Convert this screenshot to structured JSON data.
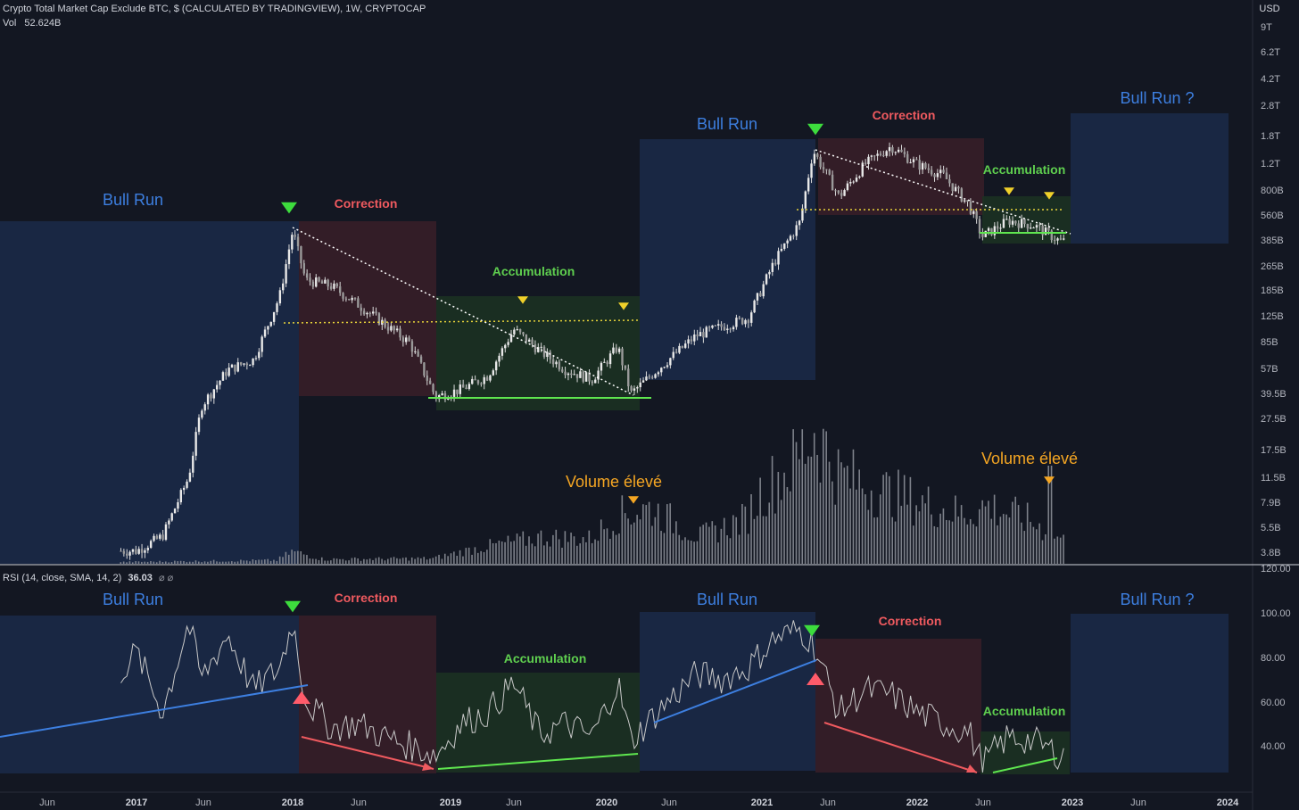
{
  "header": {
    "title": "Crypto Total Market Cap Exclude BTC, $ (CALCULATED BY TRADINGVIEW), 1W, CRYPTOCAP",
    "vol_label": "Vol",
    "vol_value": "52.624B",
    "rsi_label": "RSI (14, close, SMA, 14, 2)",
    "rsi_value": "36.03",
    "rsi_icons": "⌀  ⌀"
  },
  "price_axis": {
    "currency": "USD",
    "ticks": [
      "9T",
      "6.2T",
      "4.2T",
      "2.8T",
      "1.8T",
      "1.2T",
      "800B",
      "560B",
      "385B",
      "265B",
      "185B",
      "125B",
      "85B",
      "57B",
      "39.5B",
      "27.5B",
      "17.5B",
      "11.5B",
      "7.9B",
      "5.5B",
      "3.8B"
    ]
  },
  "rsi_axis": {
    "ticks": [
      "120.00",
      "100.00",
      "80.00",
      "60.00",
      "40.00"
    ]
  },
  "time_axis": {
    "ticks": [
      {
        "label": "Jun",
        "bold": false
      },
      {
        "label": "2017",
        "bold": true
      },
      {
        "label": "Jun",
        "bold": false
      },
      {
        "label": "2018",
        "bold": true
      },
      {
        "label": "Jun",
        "bold": false
      },
      {
        "label": "2019",
        "bold": true
      },
      {
        "label": "Jun",
        "bold": false
      },
      {
        "label": "2020",
        "bold": true
      },
      {
        "label": "Jun",
        "bold": false
      },
      {
        "label": "2021",
        "bold": true
      },
      {
        "label": "Jun",
        "bold": false
      },
      {
        "label": "2022",
        "bold": true
      },
      {
        "label": "Jun",
        "bold": false
      },
      {
        "label": "2023",
        "bold": true
      },
      {
        "label": "Jun",
        "bold": false
      },
      {
        "label": "2024",
        "bold": true
      }
    ]
  },
  "annotations": {
    "price": [
      "Bull Run",
      "Correction",
      "Accumulation",
      "Bull Run",
      "Correction",
      "Accumulation",
      "Bull Run ?"
    ],
    "volume": [
      "Volume élevé",
      "Volume élevé"
    ],
    "rsi": [
      "Bull Run",
      "Correction",
      "Accumulation",
      "Bull Run",
      "Correction",
      "Accumulation",
      "Bull Run ?"
    ]
  },
  "colors": {
    "background": "#131722",
    "bull_zone": "#1b2a49",
    "correction_zone": "#3a1f28",
    "accumulation_zone": "#1c3322",
    "bull_text": "#3d7fe0",
    "correction_text": "#ef5a5f",
    "accumulation_text": "#5fcf4f",
    "volume_text": "#f5a623",
    "candles": "#d9d9d9",
    "volume_bars": "#8a8d96",
    "rsi_line": "#c8c8c8"
  },
  "chart_data": [
    {
      "type": "line",
      "title": "Crypto Total Market Cap Exclude BTC, $ (CALCULATED BY TRADINGVIEW), 1W, CRYPTOCAP",
      "scale": "log",
      "x": [
        "2016-06",
        "2016-10",
        "2017-01",
        "2017-03",
        "2017-05",
        "2017-06",
        "2017-08",
        "2017-10",
        "2017-12",
        "2018-01",
        "2018-02",
        "2018-04",
        "2018-06",
        "2018-08",
        "2018-10",
        "2018-12",
        "2019-02",
        "2019-04",
        "2019-06",
        "2019-08",
        "2019-10",
        "2019-12",
        "2020-02",
        "2020-03",
        "2020-05",
        "2020-08",
        "2020-10",
        "2020-12",
        "2021-02",
        "2021-04",
        "2021-05",
        "2021-07",
        "2021-09",
        "2021-11",
        "2022-01",
        "2022-03",
        "2022-05",
        "2022-06",
        "2022-08",
        "2022-10",
        "2022-12"
      ],
      "series": [
        {
          "values": [
            4,
            4,
            4,
            5,
            12,
            35,
            60,
            70,
            180,
            480,
            230,
            210,
            160,
            120,
            90,
            40,
            45,
            55,
            110,
            80,
            60,
            52,
            85,
            42,
            60,
            100,
            115,
            130,
            300,
            550,
            1600,
            800,
            1300,
            1700,
            1300,
            1100,
            700,
            440,
            560,
            520,
            410
          ]
        }
      ],
      "ylim": [
        3.3,
        11000
      ]
    },
    {
      "type": "line",
      "title": "RSI (14, close, SMA, 14, 2)",
      "x": [
        "2016-06",
        "2016-10",
        "2017-01",
        "2017-03",
        "2017-05",
        "2017-06",
        "2017-08",
        "2017-10",
        "2017-12",
        "2018-01",
        "2018-02",
        "2018-04",
        "2018-06",
        "2018-08",
        "2018-10",
        "2018-12",
        "2019-02",
        "2019-04",
        "2019-06",
        "2019-08",
        "2019-10",
        "2019-12",
        "2020-02",
        "2020-03",
        "2020-05",
        "2020-08",
        "2020-10",
        "2020-12",
        "2021-02",
        "2021-04",
        "2021-05",
        "2021-07",
        "2021-09",
        "2021-11",
        "2022-01",
        "2022-03",
        "2022-05",
        "2022-06",
        "2022-08",
        "2022-10",
        "2022-12"
      ],
      "series": [
        {
          "values": [
            75,
            60,
            82,
            55,
            95,
            70,
            90,
            65,
            75,
            96,
            60,
            48,
            50,
            44,
            40,
            36,
            50,
            55,
            68,
            45,
            50,
            44,
            68,
            42,
            55,
            72,
            70,
            75,
            88,
            92,
            86,
            55,
            65,
            63,
            55,
            50,
            46,
            32,
            44,
            42,
            36
          ]
        }
      ],
      "ylim": [
        20,
        120
      ]
    }
  ]
}
